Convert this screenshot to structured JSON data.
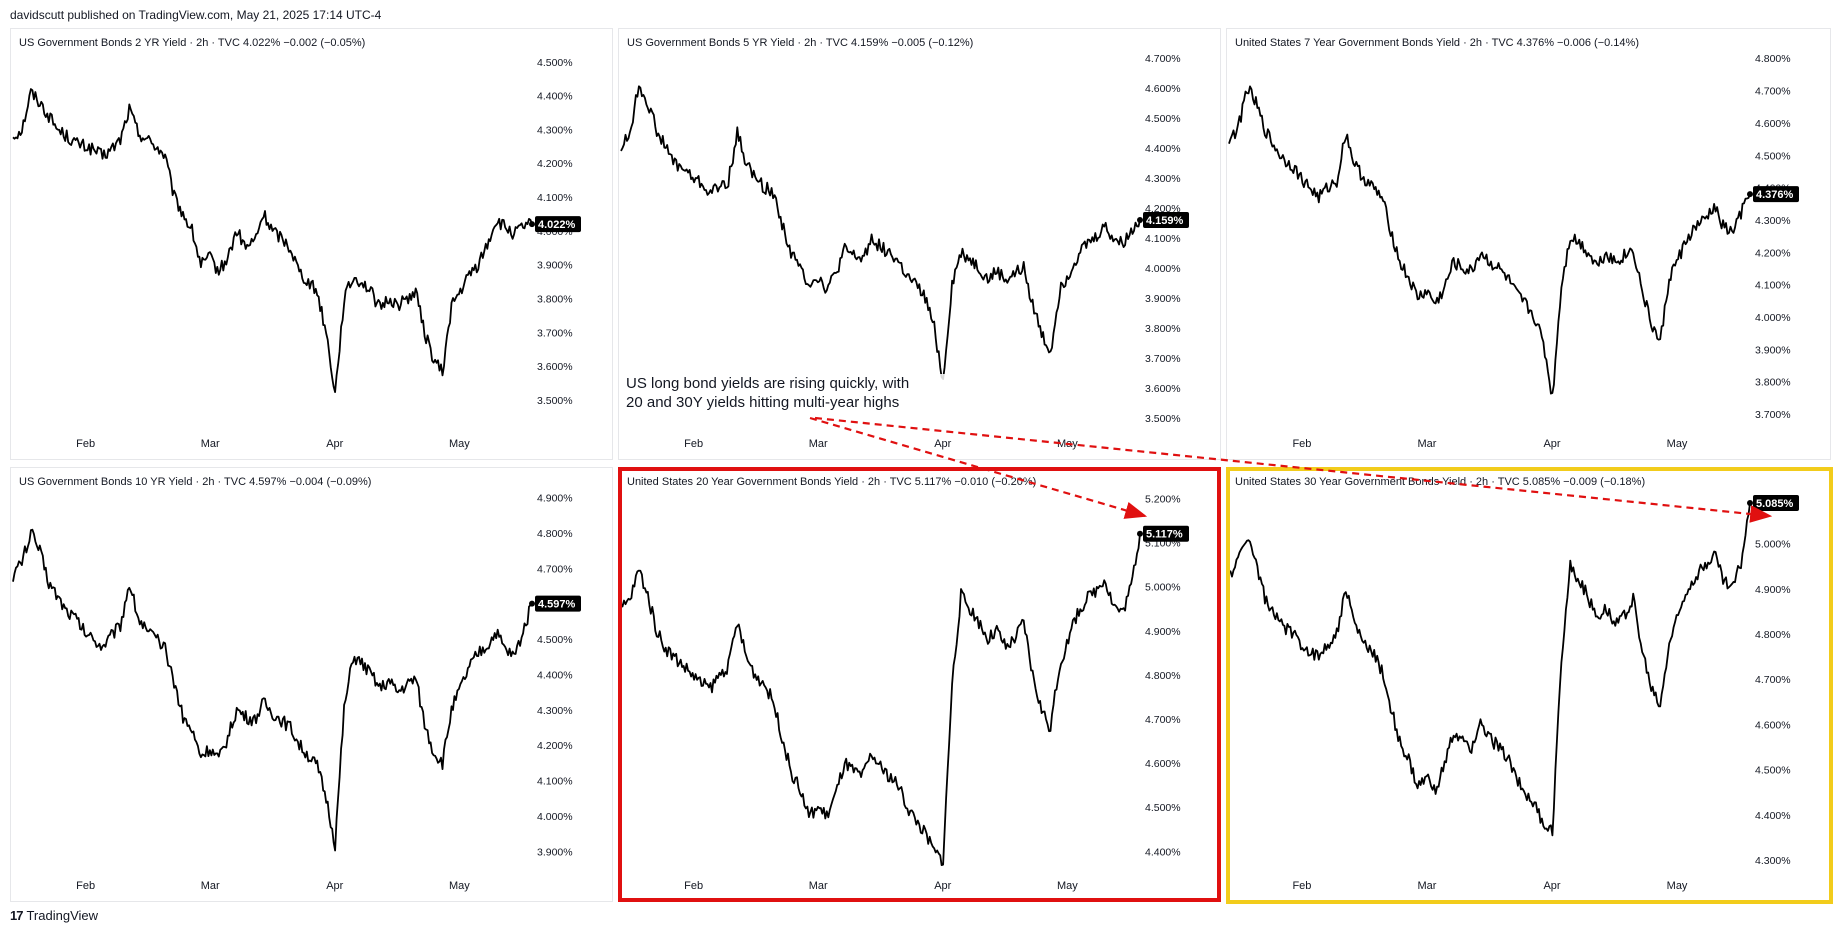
{
  "header": {
    "publisher_line": "davidscutt published on TradingView.com, May 21, 2025 17:14 UTC-4"
  },
  "footer": {
    "brand": "TradingView",
    "logo_glyph": "17"
  },
  "annotation": {
    "text_line1": "US long bond yields are rising quickly, with",
    "text_line2": "20 and 30Y yields hitting multi-year highs",
    "arrow_color": "#e01010"
  },
  "highlight_colors": {
    "red": "#e01010",
    "yellow": "#f2cc1b"
  },
  "chart_data": [
    {
      "type": "line",
      "title": "US Government Bonds 2 YR Yield · 2h · TVC  4.022%  −0.002 (−0.05%)",
      "x_ticks": [
        "Feb",
        "Mar",
        "Apr",
        "May"
      ],
      "y_ticks": [
        "4.500%",
        "4.400%",
        "4.300%",
        "4.200%",
        "4.100%",
        "4.000%",
        "3.900%",
        "3.800%",
        "3.700%",
        "3.600%",
        "3.500%"
      ],
      "ylim": [
        3.42,
        4.52
      ],
      "last_label": "4.022%",
      "series": [
        {
          "values": [
            4.28,
            4.3,
            4.41,
            4.38,
            4.34,
            4.3,
            4.28,
            4.26,
            4.25,
            4.24,
            4.22,
            4.24,
            4.27,
            4.36,
            4.29,
            4.27,
            4.25,
            4.22,
            4.1,
            4.05,
            4.0,
            3.9,
            3.92,
            3.88,
            3.92,
            4.0,
            3.95,
            3.97,
            4.05,
            4.0,
            3.98,
            3.95,
            3.88,
            3.85,
            3.82,
            3.7,
            3.52,
            3.8,
            3.86,
            3.85,
            3.82,
            3.77,
            3.8,
            3.78,
            3.8,
            3.82,
            3.7,
            3.62,
            3.58,
            3.78,
            3.82,
            3.87,
            3.9,
            3.96,
            4.03,
            4.01,
            3.99,
            4.01,
            4.02
          ]
        }
      ]
    },
    {
      "type": "line",
      "title": "US Government Bonds 5 YR Yield · 2h · TVC  4.159%  −0.005 (−0.12%)",
      "x_ticks": [
        "Feb",
        "Mar",
        "Apr",
        "May"
      ],
      "y_ticks": [
        "4.700%",
        "4.600%",
        "4.500%",
        "4.400%",
        "4.300%",
        "4.200%",
        "4.100%",
        "4.000%",
        "3.900%",
        "3.800%",
        "3.700%",
        "3.600%",
        "3.500%"
      ],
      "ylim": [
        3.47,
        4.71
      ],
      "last_label": "4.159%",
      "series": [
        {
          "values": [
            4.4,
            4.45,
            4.61,
            4.55,
            4.46,
            4.4,
            4.35,
            4.33,
            4.3,
            4.28,
            4.25,
            4.27,
            4.29,
            4.45,
            4.35,
            4.3,
            4.27,
            4.25,
            4.15,
            4.05,
            4.0,
            3.95,
            3.97,
            3.93,
            3.98,
            4.06,
            4.04,
            4.03,
            4.1,
            4.07,
            4.05,
            4.02,
            3.97,
            3.94,
            3.9,
            3.8,
            3.62,
            3.95,
            4.05,
            4.03,
            4.0,
            3.96,
            3.99,
            3.96,
            3.98,
            4.0,
            3.88,
            3.78,
            3.72,
            3.92,
            3.98,
            4.04,
            4.08,
            4.1,
            4.14,
            4.1,
            4.08,
            4.12,
            4.16
          ]
        }
      ]
    },
    {
      "type": "line",
      "title": "United States 7 Year Government Bonds Yield · 2h · TVC  4.376%  −0.006 (−0.14%)",
      "x_ticks": [
        "Feb",
        "Mar",
        "Apr",
        "May"
      ],
      "y_ticks": [
        "4.800%",
        "4.700%",
        "4.600%",
        "4.500%",
        "4.400%",
        "4.300%",
        "4.200%",
        "4.100%",
        "4.000%",
        "3.900%",
        "3.800%",
        "3.700%"
      ],
      "ylim": [
        3.66,
        4.81
      ],
      "last_label": "4.376%",
      "series": [
        {
          "values": [
            4.55,
            4.58,
            4.71,
            4.66,
            4.58,
            4.53,
            4.49,
            4.47,
            4.43,
            4.4,
            4.37,
            4.4,
            4.42,
            4.57,
            4.47,
            4.43,
            4.4,
            4.37,
            4.27,
            4.17,
            4.12,
            4.06,
            4.08,
            4.04,
            4.09,
            4.17,
            4.15,
            4.14,
            4.2,
            4.17,
            4.15,
            4.12,
            4.07,
            4.04,
            4.0,
            3.92,
            3.75,
            4.1,
            4.25,
            4.23,
            4.2,
            4.16,
            4.2,
            4.17,
            4.19,
            4.21,
            4.08,
            3.98,
            3.92,
            4.12,
            4.18,
            4.24,
            4.28,
            4.3,
            4.34,
            4.28,
            4.26,
            4.32,
            4.38
          ]
        }
      ]
    },
    {
      "type": "line",
      "title": "US Government Bonds 10 YR Yield · 2h · TVC  4.597%  −0.004 (−0.09%)",
      "x_ticks": [
        "Feb",
        "Mar",
        "Apr",
        "May"
      ],
      "y_ticks": [
        "4.900%",
        "4.800%",
        "4.700%",
        "4.600%",
        "4.500%",
        "4.400%",
        "4.300%",
        "4.200%",
        "4.100%",
        "4.000%",
        "3.900%"
      ],
      "ylim": [
        3.85,
        4.91
      ],
      "last_label": "4.597%",
      "series": [
        {
          "values": [
            4.68,
            4.72,
            4.8,
            4.75,
            4.66,
            4.62,
            4.58,
            4.56,
            4.52,
            4.5,
            4.48,
            4.51,
            4.54,
            4.66,
            4.56,
            4.52,
            4.5,
            4.47,
            4.38,
            4.28,
            4.24,
            4.17,
            4.19,
            4.16,
            4.22,
            4.3,
            4.28,
            4.27,
            4.32,
            4.29,
            4.27,
            4.25,
            4.2,
            4.17,
            4.14,
            4.05,
            3.92,
            4.3,
            4.45,
            4.43,
            4.4,
            4.36,
            4.38,
            4.35,
            4.37,
            4.39,
            4.26,
            4.18,
            4.15,
            4.3,
            4.36,
            4.42,
            4.46,
            4.48,
            4.52,
            4.47,
            4.45,
            4.52,
            4.6
          ]
        }
      ]
    },
    {
      "type": "line",
      "title": "United States 20 Year Government Bonds Yield · 2h · TVC  5.117%  −0.010 (−0.20%)",
      "x_ticks": [
        "Feb",
        "Mar",
        "Apr",
        "May"
      ],
      "y_ticks": [
        "5.200%",
        "5.100%",
        "5.000%",
        "4.900%",
        "4.800%",
        "4.700%",
        "4.600%",
        "4.500%",
        "4.400%"
      ],
      "ylim": [
        4.36,
        5.21
      ],
      "last_label": "5.117%",
      "series": [
        {
          "values": [
            4.95,
            4.97,
            5.04,
            4.98,
            4.9,
            4.86,
            4.84,
            4.82,
            4.8,
            4.78,
            4.77,
            4.8,
            4.82,
            4.92,
            4.84,
            4.8,
            4.78,
            4.74,
            4.66,
            4.58,
            4.54,
            4.48,
            4.5,
            4.48,
            4.53,
            4.6,
            4.58,
            4.57,
            4.62,
            4.59,
            4.57,
            4.55,
            4.5,
            4.47,
            4.44,
            4.4,
            4.38,
            4.78,
            4.98,
            4.95,
            4.92,
            4.88,
            4.9,
            4.86,
            4.88,
            4.92,
            4.8,
            4.72,
            4.68,
            4.82,
            4.88,
            4.94,
            4.97,
            4.99,
            5.02,
            4.96,
            4.94,
            5.0,
            5.12
          ]
        }
      ]
    },
    {
      "type": "line",
      "title": "United States 30 Year Government Bonds Yield · 2h · TVC  5.085%  −0.009 (−0.18%)",
      "x_ticks": [
        "Feb",
        "Mar",
        "Apr",
        "May"
      ],
      "y_ticks": [
        "5.100%",
        "5.000%",
        "4.900%",
        "4.800%",
        "4.700%",
        "4.600%",
        "4.500%",
        "4.400%",
        "4.300%"
      ],
      "ylim": [
        4.28,
        5.11
      ],
      "last_label": "5.085%",
      "series": [
        {
          "values": [
            4.93,
            4.96,
            5.02,
            4.96,
            4.88,
            4.84,
            4.82,
            4.8,
            4.78,
            4.76,
            4.75,
            4.78,
            4.8,
            4.9,
            4.82,
            4.78,
            4.76,
            4.72,
            4.64,
            4.56,
            4.52,
            4.46,
            4.48,
            4.46,
            4.51,
            4.58,
            4.56,
            4.55,
            4.6,
            4.57,
            4.55,
            4.53,
            4.48,
            4.45,
            4.42,
            4.38,
            4.36,
            4.75,
            4.95,
            4.92,
            4.88,
            4.84,
            4.86,
            4.82,
            4.84,
            4.88,
            4.76,
            4.68,
            4.64,
            4.78,
            4.84,
            4.9,
            4.93,
            4.95,
            4.98,
            4.92,
            4.9,
            4.96,
            5.09
          ]
        }
      ]
    }
  ]
}
